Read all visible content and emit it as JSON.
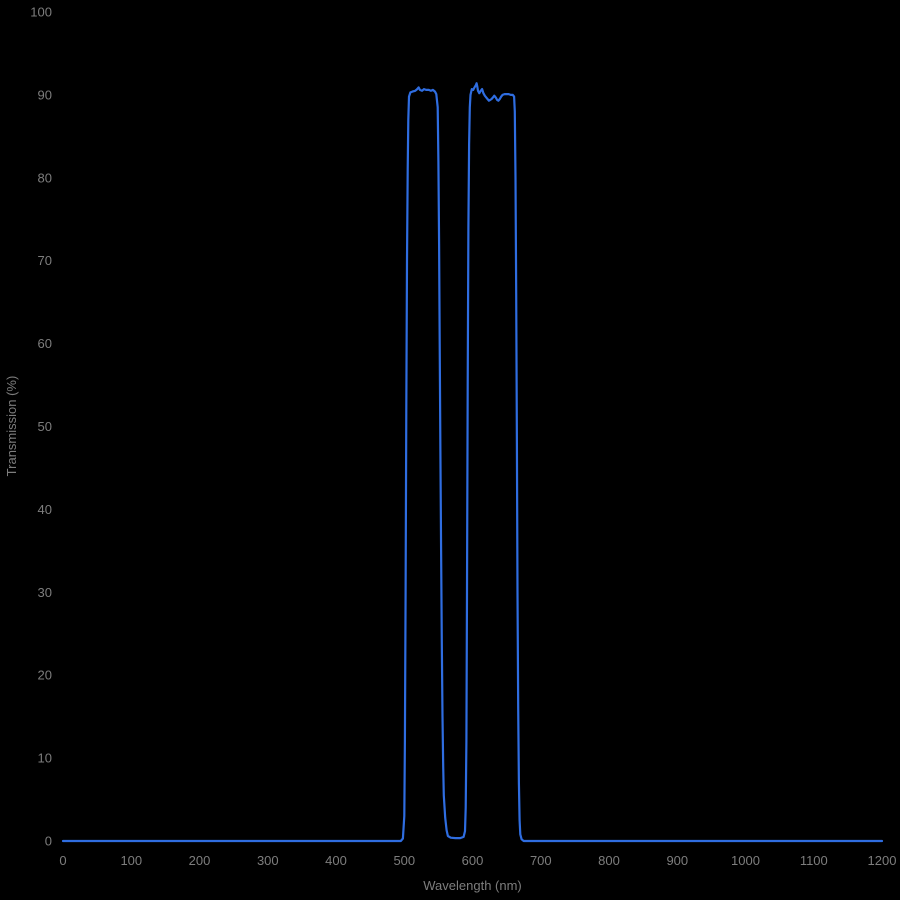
{
  "page": {
    "background": "#000000"
  },
  "chart_data": {
    "type": "line",
    "title": "",
    "xlabel": "Wavelength (nm)",
    "ylabel": "Transmission (%)",
    "xlim": [
      0,
      1200
    ],
    "ylim": [
      0,
      100
    ],
    "x_ticks": [
      0,
      100,
      200,
      300,
      400,
      500,
      600,
      700,
      800,
      900,
      1000,
      1100,
      1200
    ],
    "y_ticks": [
      0,
      10,
      20,
      30,
      40,
      50,
      60,
      70,
      80,
      90,
      100
    ],
    "grid": false,
    "legend_position": "none",
    "colors": {
      "line": "#2f6de0",
      "tick_label": "#7d7d7d",
      "axis_title": "#7d7d7d",
      "background": "#000000"
    },
    "series": [
      {
        "name": "transmission",
        "points": [
          [
            0,
            0
          ],
          [
            50,
            0
          ],
          [
            100,
            0
          ],
          [
            150,
            0
          ],
          [
            200,
            0
          ],
          [
            250,
            0
          ],
          [
            300,
            0
          ],
          [
            350,
            0
          ],
          [
            400,
            0
          ],
          [
            450,
            0
          ],
          [
            480,
            0
          ],
          [
            495,
            0
          ],
          [
            498,
            0.3
          ],
          [
            500,
            3
          ],
          [
            501,
            12
          ],
          [
            502,
            30
          ],
          [
            503,
            52
          ],
          [
            504,
            70
          ],
          [
            505,
            81
          ],
          [
            506,
            87
          ],
          [
            507,
            89.8
          ],
          [
            509,
            90.3
          ],
          [
            512,
            90.4
          ],
          [
            516,
            90.5
          ],
          [
            519,
            90.7
          ],
          [
            521,
            90.9
          ],
          [
            523,
            90.6
          ],
          [
            526,
            90.5
          ],
          [
            529,
            90.7
          ],
          [
            532,
            90.6
          ],
          [
            536,
            90.6
          ],
          [
            539,
            90.5
          ],
          [
            542,
            90.6
          ],
          [
            545,
            90.4
          ],
          [
            547,
            90.1
          ],
          [
            549,
            88.5
          ],
          [
            550,
            82
          ],
          [
            551,
            72
          ],
          [
            552,
            60
          ],
          [
            553,
            47
          ],
          [
            554,
            35
          ],
          [
            555,
            24
          ],
          [
            556,
            15
          ],
          [
            557,
            9
          ],
          [
            558,
            5.5
          ],
          [
            560,
            2.8
          ],
          [
            562,
            1.3
          ],
          [
            564,
            0.6
          ],
          [
            568,
            0.4
          ],
          [
            575,
            0.35
          ],
          [
            582,
            0.35
          ],
          [
            587,
            0.5
          ],
          [
            589,
            1.2
          ],
          [
            590,
            4
          ],
          [
            591,
            12
          ],
          [
            592,
            30
          ],
          [
            593,
            55
          ],
          [
            594,
            74
          ],
          [
            595,
            84
          ],
          [
            596,
            88.5
          ],
          [
            597,
            90
          ],
          [
            599,
            90.7
          ],
          [
            601,
            90.6
          ],
          [
            603,
            90.9
          ],
          [
            605,
            91.2
          ],
          [
            606,
            91.4
          ],
          [
            607,
            91.0
          ],
          [
            608,
            90.5
          ],
          [
            610,
            90.2
          ],
          [
            612,
            90.5
          ],
          [
            614,
            90.7
          ],
          [
            616,
            90.2
          ],
          [
            618,
            89.9
          ],
          [
            620,
            89.7
          ],
          [
            622,
            89.5
          ],
          [
            624,
            89.3
          ],
          [
            626,
            89.4
          ],
          [
            628,
            89.5
          ],
          [
            630,
            89.7
          ],
          [
            632,
            89.9
          ],
          [
            634,
            89.7
          ],
          [
            636,
            89.4
          ],
          [
            638,
            89.3
          ],
          [
            640,
            89.5
          ],
          [
            642,
            89.8
          ],
          [
            644,
            90.0
          ],
          [
            647,
            90.1
          ],
          [
            650,
            90.1
          ],
          [
            653,
            90.1
          ],
          [
            656,
            90.0
          ],
          [
            659,
            90.0
          ],
          [
            661,
            89.8
          ],
          [
            662,
            88
          ],
          [
            663,
            80
          ],
          [
            664,
            66
          ],
          [
            665,
            48
          ],
          [
            666,
            30
          ],
          [
            667,
            16
          ],
          [
            668,
            7
          ],
          [
            669,
            2.5
          ],
          [
            670,
            0.8
          ],
          [
            672,
            0.2
          ],
          [
            675,
            0
          ],
          [
            700,
            0
          ],
          [
            750,
            0
          ],
          [
            800,
            0
          ],
          [
            850,
            0
          ],
          [
            900,
            0
          ],
          [
            950,
            0
          ],
          [
            1000,
            0
          ],
          [
            1050,
            0
          ],
          [
            1100,
            0
          ],
          [
            1150,
            0
          ],
          [
            1200,
            0
          ]
        ]
      }
    ]
  }
}
